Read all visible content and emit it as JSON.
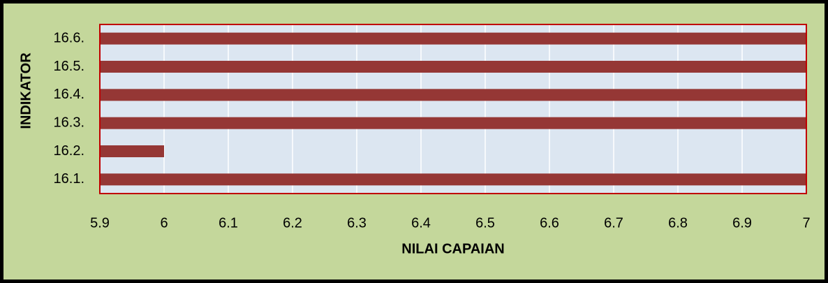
{
  "chart_data": {
    "type": "bar",
    "orientation": "horizontal",
    "x_label": "NILAI CAPAIAN",
    "y_label": "INDIKATOR",
    "categories": [
      "16.1.",
      "16.2.",
      "16.3.",
      "16.4.",
      "16.5.",
      "16.6."
    ],
    "values": [
      7,
      6,
      7,
      7,
      7,
      7
    ],
    "color": "#953735",
    "xlim": [
      5.9,
      7
    ],
    "xticks": [
      5.9,
      6,
      6.1,
      6.2,
      6.3,
      6.4,
      6.5,
      6.6,
      6.7,
      6.8,
      6.9,
      7
    ],
    "grid": true
  }
}
